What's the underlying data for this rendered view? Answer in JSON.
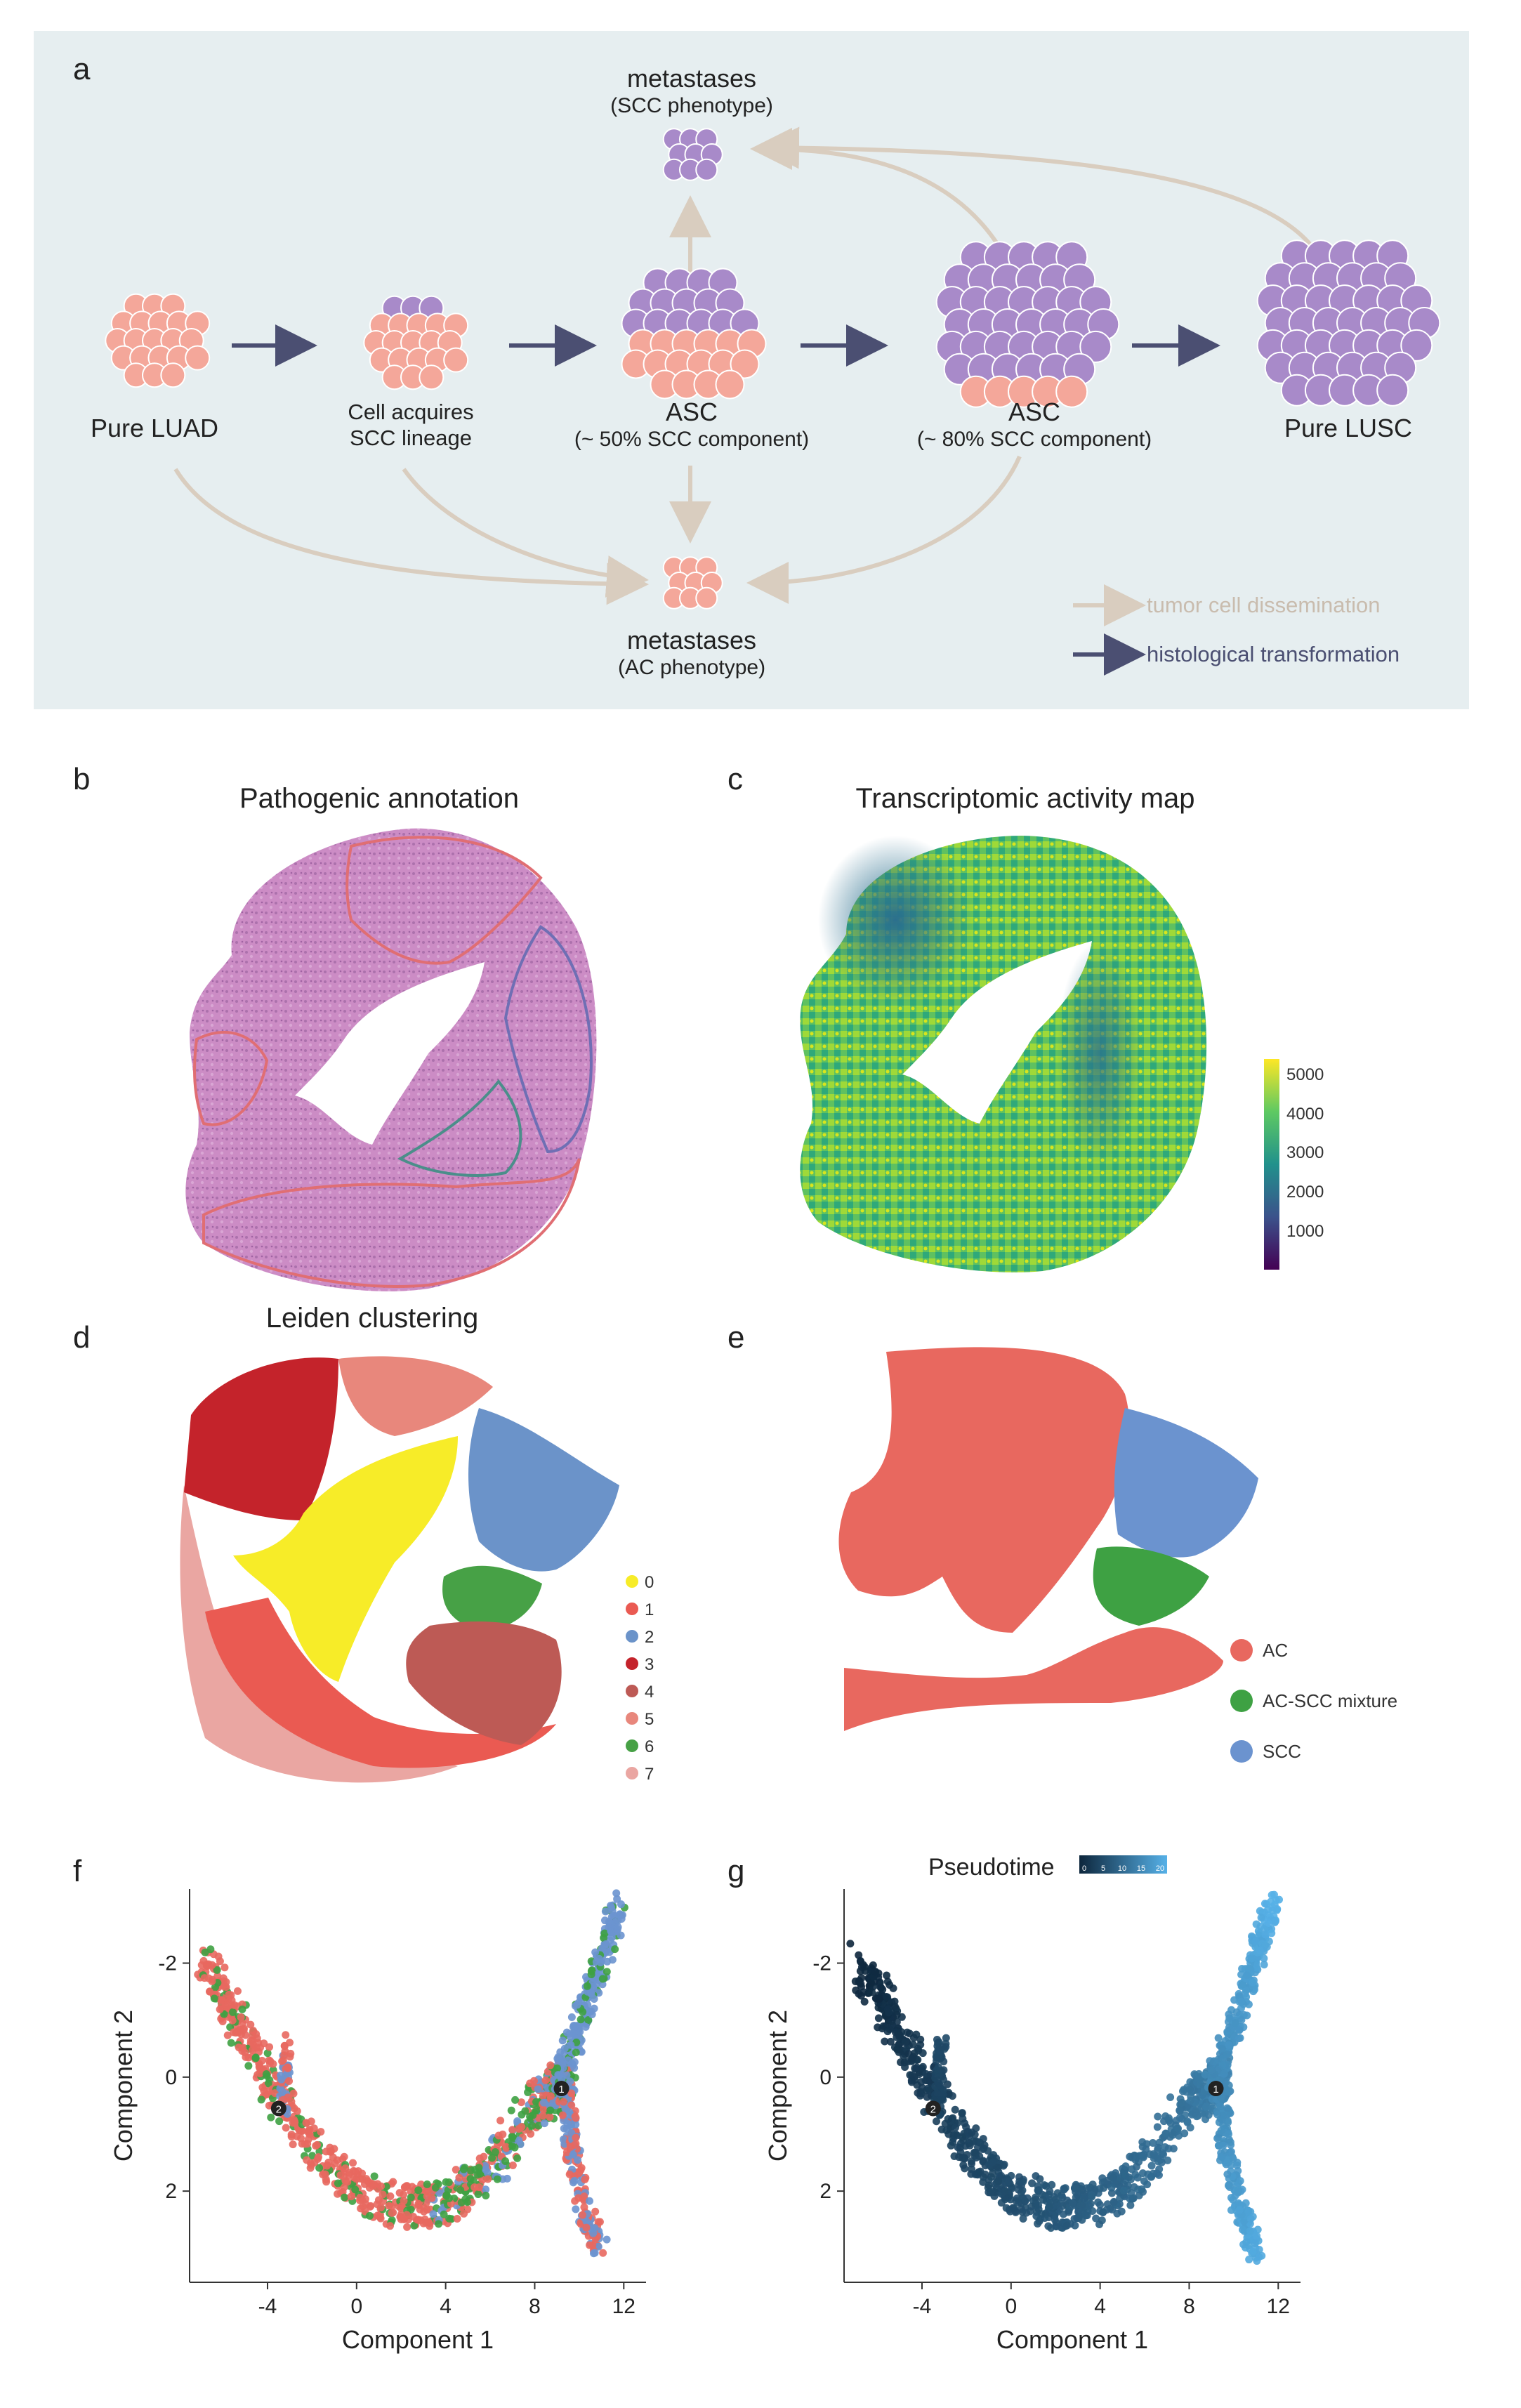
{
  "panel_a": {
    "label": "a",
    "nodes": {
      "pure_luad": "Pure LUAD",
      "acquires_line1": "Cell acquires",
      "acquires_line2": "SCC lineage",
      "asc50_line1": "ASC",
      "asc50_line2": "(~ 50% SCC component)",
      "asc80_line1": "ASC",
      "asc80_line2": "(~ 80% SCC component)",
      "pure_lusc": "Pure LUSC",
      "meta_top_line1": "metastases",
      "meta_top_line2": "(SCC phenotype)",
      "meta_bottom_line1": "metastases",
      "meta_bottom_line2": "(AC phenotype)"
    },
    "legend": {
      "dissemination": "tumor cell dissemination",
      "transformation": "histological transformation"
    },
    "colors": {
      "ac_cell": "#f4a79a",
      "scc_cell": "#a88ac9",
      "dissemination": "#d9cdbf",
      "transformation": "#4b4f72",
      "background": "#e6eef0"
    }
  },
  "panel_b": {
    "label": "b",
    "title": "Pathogenic annotation"
  },
  "panel_c": {
    "label": "c",
    "title": "Transcriptomic activity map",
    "colorbar": {
      "ticks": [
        "5000",
        "4000",
        "3000",
        "2000",
        "1000"
      ],
      "colormap": "viridis"
    }
  },
  "panel_d": {
    "label": "d",
    "title": "Leiden clustering",
    "legend": [
      {
        "name": "0",
        "color": "#f7ec28"
      },
      {
        "name": "1",
        "color": "#ea5a52"
      },
      {
        "name": "2",
        "color": "#6b93c9"
      },
      {
        "name": "3",
        "color": "#c4232b"
      },
      {
        "name": "4",
        "color": "#bd5a55"
      },
      {
        "name": "5",
        "color": "#e8877c"
      },
      {
        "name": "6",
        "color": "#47a146"
      },
      {
        "name": "7",
        "color": "#eaa6a2"
      }
    ]
  },
  "panel_e": {
    "label": "e",
    "legend": [
      {
        "name": "AC",
        "color": "#e8685f"
      },
      {
        "name": "AC-SCC mixture",
        "color": "#3ea143"
      },
      {
        "name": "SCC",
        "color": "#6b93cf"
      }
    ]
  },
  "panel_f": {
    "label": "f",
    "xlabel": "Component 1",
    "ylabel": "Component 2",
    "xticks": [
      "-4",
      "0",
      "4",
      "8",
      "12"
    ],
    "yticks": [
      "-2",
      "0",
      "2"
    ],
    "branch_points": [
      "2",
      "1"
    ]
  },
  "panel_g": {
    "label": "g",
    "xlabel": "Component 1",
    "ylabel": "Component 2",
    "xticks": [
      "-4",
      "0",
      "4",
      "8",
      "12"
    ],
    "yticks": [
      "-2",
      "0",
      "2"
    ],
    "legend_title": "Pseudotime",
    "colorbar_ticks": [
      "0",
      "5",
      "10",
      "15",
      "20"
    ],
    "branch_points": [
      "2",
      "1"
    ]
  },
  "chart_data": [
    {
      "type": "scatter",
      "panel": "f",
      "xlabel": "Component 1",
      "ylabel": "Component 2",
      "xlim": [
        -7.5,
        13
      ],
      "ylim": [
        3.6,
        -3.3
      ],
      "trajectory": {
        "main_branch": {
          "x": [
            -6.8,
            -5.5,
            -4,
            -2,
            0,
            2,
            4,
            6,
            8,
            9,
            9.5
          ],
          "y": [
            -2.0,
            -1.1,
            0.0,
            1.2,
            2.0,
            2.3,
            2.2,
            1.6,
            0.5,
            0.2,
            0.0
          ]
        },
        "upper_branch": {
          "x": [
            9,
            10,
            11,
            11.8
          ],
          "y": [
            0.2,
            -0.9,
            -2.1,
            -3.0
          ]
        },
        "lower_branch": {
          "x": [
            9.5,
            9.6,
            10.2,
            11
          ],
          "y": [
            0.2,
            1.2,
            2.3,
            3.0
          ]
        },
        "side_branch": {
          "x": [
            -3.3,
            -3.1
          ],
          "y": [
            0.6,
            -0.6
          ]
        }
      },
      "branch_points": [
        {
          "label": "2",
          "x": -3.5,
          "y": 0.55
        },
        {
          "label": "1",
          "x": 9.2,
          "y": 0.2
        }
      ],
      "series": [
        {
          "name": "AC",
          "color": "#e8685f"
        },
        {
          "name": "AC-SCC mixture",
          "color": "#3ea143"
        },
        {
          "name": "SCC",
          "color": "#6b93cf"
        }
      ]
    },
    {
      "type": "scatter",
      "panel": "g",
      "xlabel": "Component 1",
      "ylabel": "Component 2",
      "xlim": [
        -7.5,
        13
      ],
      "ylim": [
        3.6,
        -3.3
      ],
      "color_by": "Pseudotime",
      "colorbar_range": [
        0,
        20
      ],
      "branch_points": [
        {
          "label": "2",
          "x": -3.5,
          "y": 0.55
        },
        {
          "label": "1",
          "x": 9.2,
          "y": 0.2
        }
      ]
    }
  ]
}
